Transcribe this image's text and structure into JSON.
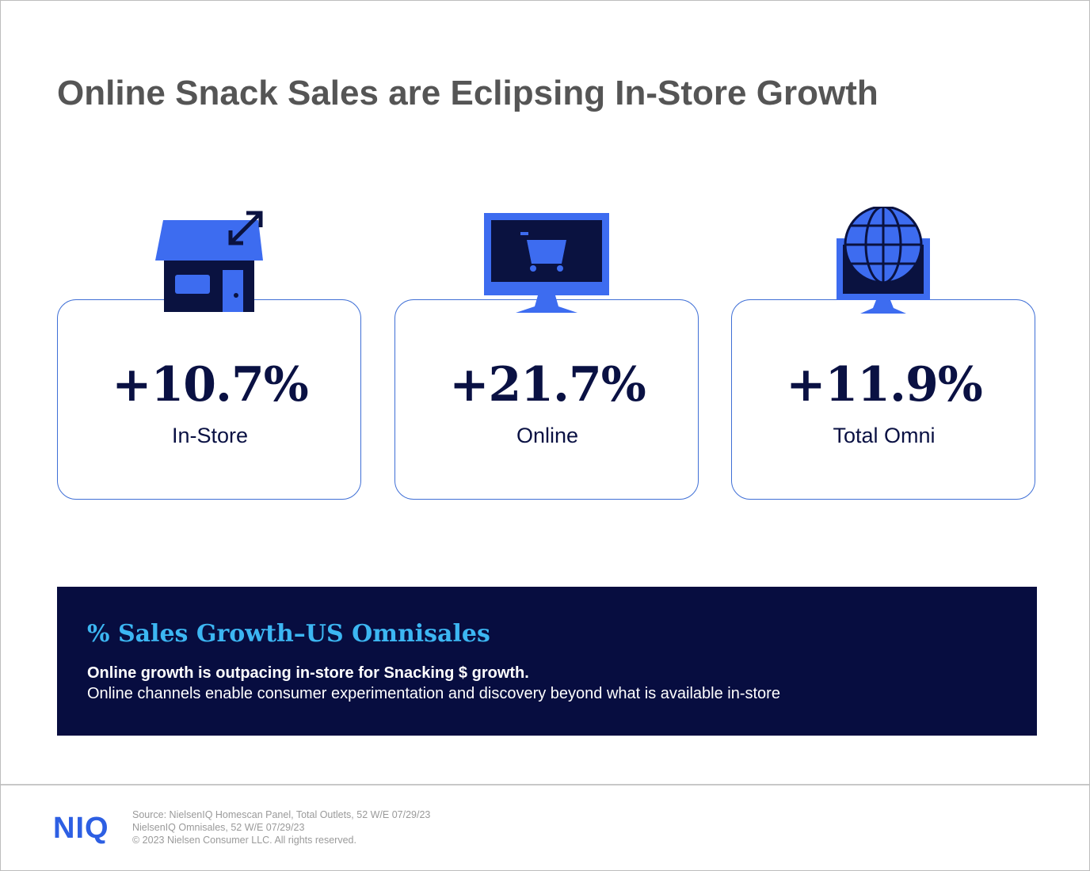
{
  "header": {
    "title": "Online Snack Sales are Eclipsing In-Store Growth"
  },
  "cards": [
    {
      "value": "+10.7%",
      "label": "In-Store"
    },
    {
      "value": "+21.7%",
      "label": "Online"
    },
    {
      "value": "+11.9%",
      "label": "Total Omni"
    }
  ],
  "panel": {
    "title": "% Sales Growth–US Omnisales",
    "headline": "Online growth is outpacing in-store for Snacking $ growth.",
    "text": "Online channels enable consumer experimentation and discovery beyond what is available in-store"
  },
  "footer": {
    "logo": "NIQ",
    "sources": [
      "Source: NielsenIQ Homescan Panel, Total Outlets, 52 W/E 07/29/23",
      "NielsenIQ Omnisales, 52 W/E 07/29/23",
      "© 2023 Nielsen Consumer LLC. All rights reserved."
    ]
  }
}
